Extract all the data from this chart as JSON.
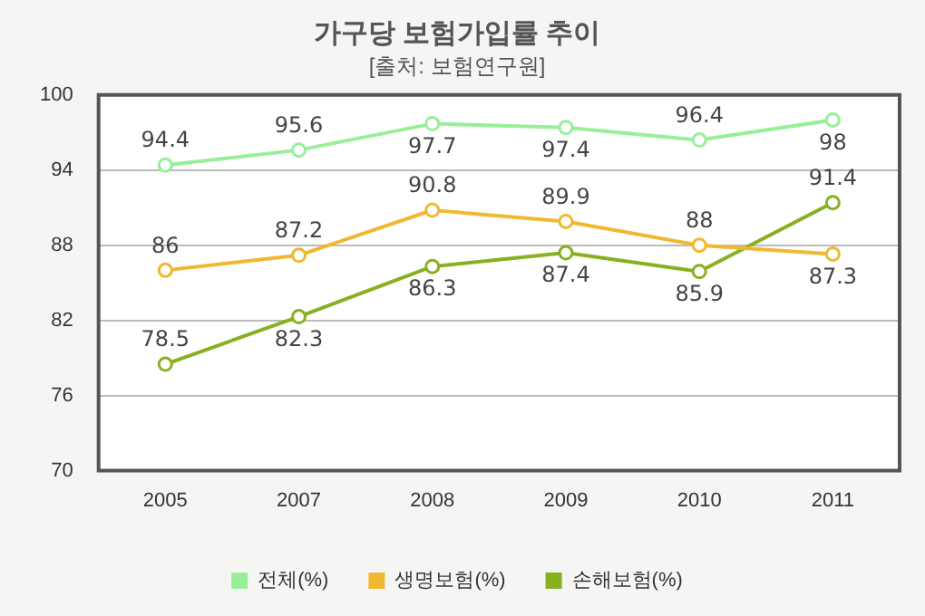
{
  "chart_data": {
    "type": "line",
    "title": "가구당 보험가입률 추이",
    "subtitle": "[출처: 보험연구원]",
    "categories": [
      "2005",
      "2007",
      "2008",
      "2009",
      "2010",
      "2011"
    ],
    "series": [
      {
        "name": "전체(%)",
        "color": "#99ee99",
        "values": [
          94.4,
          95.6,
          97.7,
          97.4,
          96.4,
          98
        ]
      },
      {
        "name": "생명보험(%)",
        "color": "#f0b830",
        "values": [
          86,
          87.2,
          90.8,
          89.9,
          88,
          87.3
        ]
      },
      {
        "name": "손해보험(%)",
        "color": "#88b020",
        "values": [
          78.5,
          82.3,
          86.3,
          87.4,
          85.9,
          91.4
        ]
      }
    ],
    "ylim": [
      70,
      100
    ],
    "yticks": [
      70,
      76,
      82,
      88,
      94,
      100
    ],
    "grid": "y",
    "legend": "bottom",
    "marker": "circle",
    "line_style": "solid",
    "data_labels": true
  }
}
